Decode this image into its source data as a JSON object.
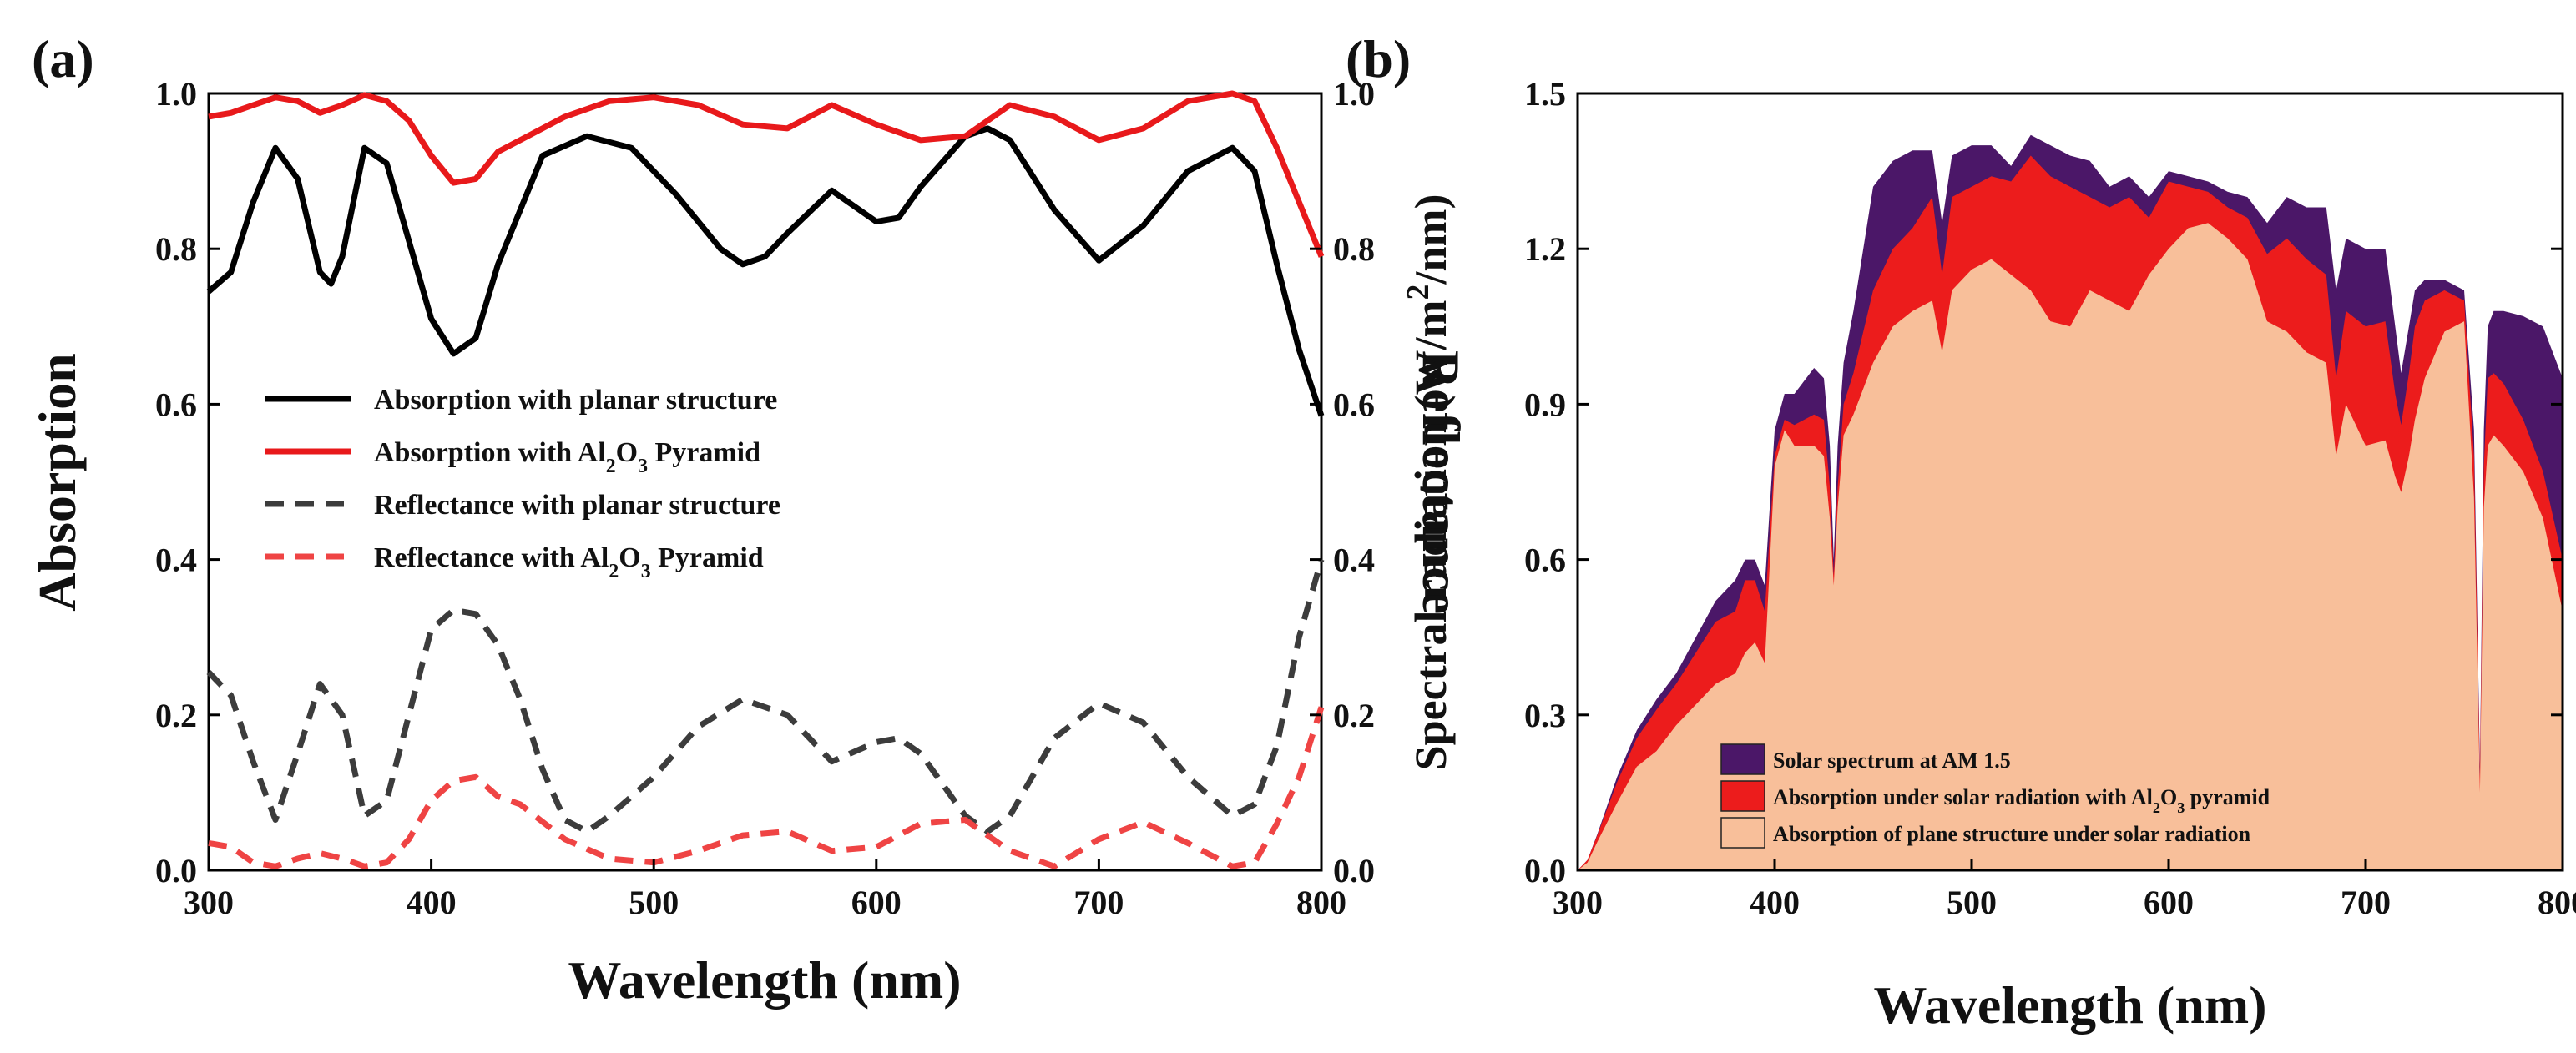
{
  "panel_labels": {
    "a": "(a)",
    "b": "(b)"
  },
  "chart_data": [
    {
      "id": "a",
      "type": "line",
      "title": "",
      "xlabel": "Wavelength (nm)",
      "ylabel": "Absorption",
      "ylabel_right": "Reflectance",
      "xlim": [
        300,
        800
      ],
      "ylim": [
        0,
        1
      ],
      "xticks": [
        "300",
        "400",
        "500",
        "600",
        "700",
        "800"
      ],
      "yticks": [
        "0.0",
        "0.2",
        "0.4",
        "0.6",
        "0.8",
        "1.0"
      ],
      "legend_location": "center",
      "series": [
        {
          "name": "Absorption with planar structure",
          "legend_parts": [
            "Absorption with planar structure"
          ],
          "color": "#000000",
          "style": "solid",
          "x": [
            300,
            310,
            320,
            330,
            340,
            350,
            355,
            360,
            370,
            380,
            390,
            400,
            410,
            420,
            430,
            450,
            470,
            490,
            510,
            530,
            540,
            550,
            560,
            580,
            600,
            610,
            620,
            640,
            650,
            660,
            680,
            700,
            720,
            740,
            760,
            770,
            780,
            790,
            800
          ],
          "y": [
            0.745,
            0.77,
            0.86,
            0.93,
            0.89,
            0.77,
            0.755,
            0.79,
            0.93,
            0.91,
            0.81,
            0.71,
            0.665,
            0.685,
            0.78,
            0.92,
            0.945,
            0.93,
            0.87,
            0.8,
            0.78,
            0.79,
            0.82,
            0.875,
            0.835,
            0.84,
            0.88,
            0.945,
            0.955,
            0.94,
            0.85,
            0.785,
            0.83,
            0.9,
            0.93,
            0.9,
            0.78,
            0.67,
            0.585
          ]
        },
        {
          "name": "Absorption with Al2O3 Pyramid",
          "legend_parts": [
            "Absorption with Al",
            "2",
            "O",
            "3",
            " Pyramid"
          ],
          "color": "#e8191b",
          "style": "solid",
          "x": [
            300,
            310,
            320,
            330,
            340,
            350,
            360,
            370,
            380,
            390,
            400,
            410,
            420,
            430,
            440,
            460,
            480,
            500,
            520,
            540,
            560,
            580,
            600,
            620,
            640,
            660,
            680,
            700,
            720,
            740,
            760,
            770,
            780,
            790,
            800
          ],
          "y": [
            0.97,
            0.975,
            0.985,
            0.995,
            0.99,
            0.975,
            0.985,
            0.998,
            0.99,
            0.965,
            0.92,
            0.885,
            0.89,
            0.925,
            0.94,
            0.97,
            0.99,
            0.995,
            0.985,
            0.96,
            0.955,
            0.985,
            0.96,
            0.94,
            0.945,
            0.985,
            0.97,
            0.94,
            0.955,
            0.99,
            1.0,
            0.99,
            0.93,
            0.86,
            0.79
          ]
        },
        {
          "name": "Reflectance with planar structure",
          "legend_parts": [
            "Reflectance with planar structure"
          ],
          "color": "#3c3c3c",
          "style": "dashed",
          "x": [
            300,
            310,
            320,
            330,
            340,
            350,
            360,
            370,
            380,
            390,
            400,
            410,
            420,
            430,
            440,
            450,
            460,
            470,
            480,
            500,
            520,
            540,
            560,
            580,
            600,
            610,
            620,
            640,
            650,
            660,
            680,
            700,
            720,
            740,
            760,
            770,
            780,
            790,
            800
          ],
          "y": [
            0.255,
            0.225,
            0.14,
            0.065,
            0.15,
            0.24,
            0.2,
            0.07,
            0.09,
            0.2,
            0.31,
            0.335,
            0.33,
            0.29,
            0.22,
            0.13,
            0.065,
            0.05,
            0.07,
            0.12,
            0.185,
            0.22,
            0.2,
            0.14,
            0.165,
            0.17,
            0.15,
            0.07,
            0.05,
            0.07,
            0.17,
            0.215,
            0.19,
            0.12,
            0.07,
            0.085,
            0.16,
            0.3,
            0.4
          ]
        },
        {
          "name": "Reflectance with Al2O3 Pyramid",
          "legend_parts": [
            "Reflectance with Al",
            "2",
            "O",
            "3",
            " Pyramid"
          ],
          "color": "#ef4444",
          "style": "dashed",
          "x": [
            300,
            310,
            320,
            330,
            340,
            350,
            360,
            370,
            380,
            390,
            400,
            410,
            420,
            430,
            440,
            460,
            480,
            500,
            520,
            540,
            560,
            580,
            600,
            620,
            640,
            660,
            680,
            700,
            720,
            740,
            760,
            770,
            780,
            790,
            800
          ],
          "y": [
            0.035,
            0.03,
            0.01,
            0.005,
            0.015,
            0.022,
            0.015,
            0.005,
            0.01,
            0.04,
            0.09,
            0.115,
            0.12,
            0.095,
            0.085,
            0.04,
            0.015,
            0.01,
            0.025,
            0.045,
            0.05,
            0.025,
            0.03,
            0.06,
            0.065,
            0.025,
            0.005,
            0.04,
            0.062,
            0.035,
            0.005,
            0.01,
            0.06,
            0.12,
            0.21
          ]
        }
      ]
    },
    {
      "id": "b",
      "type": "area",
      "title": "",
      "xlabel": "Wavelength (nm)",
      "ylabel": "Spectral radiation (W/m2/nm)",
      "ylabel_parts": [
        "Spectral radiation (W/m",
        "2",
        "/nm)"
      ],
      "xlim": [
        300,
        800
      ],
      "ylim": [
        0,
        1.5
      ],
      "xticks": [
        "300",
        "400",
        "500",
        "600",
        "700",
        "800"
      ],
      "yticks": [
        "0.0",
        "0.3",
        "0.6",
        "0.9",
        "1.2",
        "1.5"
      ],
      "legend_location": "bottom-left",
      "x": [
        300,
        305,
        310,
        320,
        330,
        340,
        350,
        360,
        370,
        380,
        385,
        390,
        395,
        400,
        405,
        410,
        420,
        425,
        428,
        430,
        432,
        435,
        440,
        450,
        460,
        470,
        480,
        485,
        490,
        500,
        510,
        520,
        530,
        540,
        550,
        560,
        570,
        580,
        590,
        600,
        610,
        620,
        630,
        640,
        650,
        660,
        670,
        680,
        685,
        690,
        700,
        710,
        715,
        718,
        722,
        725,
        730,
        740,
        750,
        755,
        758,
        760,
        762,
        765,
        770,
        780,
        790,
        800
      ],
      "series": [
        {
          "name": "Solar spectrum at AM 1.5",
          "legend_parts": [
            "Solar spectrum at AM 1.5"
          ],
          "color": "#4b1768",
          "values": [
            0.0,
            0.02,
            0.07,
            0.18,
            0.27,
            0.33,
            0.38,
            0.45,
            0.52,
            0.56,
            0.6,
            0.6,
            0.55,
            0.85,
            0.92,
            0.92,
            0.97,
            0.95,
            0.82,
            0.6,
            0.82,
            0.98,
            1.08,
            1.32,
            1.37,
            1.39,
            1.39,
            1.25,
            1.38,
            1.4,
            1.4,
            1.36,
            1.42,
            1.4,
            1.38,
            1.37,
            1.32,
            1.34,
            1.3,
            1.35,
            1.34,
            1.33,
            1.31,
            1.3,
            1.25,
            1.3,
            1.28,
            1.28,
            1.12,
            1.22,
            1.2,
            1.2,
            1.05,
            0.96,
            1.05,
            1.12,
            1.14,
            1.14,
            1.12,
            0.85,
            0.2,
            0.85,
            1.05,
            1.08,
            1.08,
            1.07,
            1.05,
            0.95
          ]
        },
        {
          "name": "Absorption under solar radiation with Al2O3 pyramid",
          "legend_parts": [
            "Absorption under solar radiation with Al",
            "2",
            "O",
            "3",
            " pyramid"
          ],
          "color": "#ec1c1c",
          "values": [
            0.0,
            0.02,
            0.068,
            0.17,
            0.255,
            0.31,
            0.36,
            0.42,
            0.48,
            0.5,
            0.56,
            0.56,
            0.5,
            0.8,
            0.87,
            0.86,
            0.88,
            0.87,
            0.74,
            0.57,
            0.74,
            0.9,
            0.96,
            1.12,
            1.2,
            1.24,
            1.3,
            1.15,
            1.3,
            1.32,
            1.34,
            1.33,
            1.38,
            1.34,
            1.32,
            1.3,
            1.28,
            1.3,
            1.26,
            1.33,
            1.32,
            1.31,
            1.28,
            1.26,
            1.19,
            1.22,
            1.18,
            1.15,
            0.95,
            1.08,
            1.05,
            1.06,
            0.92,
            0.86,
            0.96,
            1.05,
            1.1,
            1.12,
            1.1,
            0.8,
            0.18,
            0.78,
            0.95,
            0.96,
            0.94,
            0.87,
            0.77,
            0.6
          ]
        },
        {
          "name": "Absorption of plane structure under solar radiation",
          "legend_parts": [
            "Absorption of plane structure under solar radiation"
          ],
          "color": "#f8bf9a",
          "values": [
            0.0,
            0.015,
            0.055,
            0.13,
            0.2,
            0.23,
            0.28,
            0.32,
            0.36,
            0.38,
            0.42,
            0.44,
            0.4,
            0.78,
            0.85,
            0.82,
            0.82,
            0.8,
            0.68,
            0.55,
            0.7,
            0.84,
            0.88,
            0.98,
            1.05,
            1.08,
            1.1,
            1.0,
            1.12,
            1.16,
            1.18,
            1.15,
            1.12,
            1.06,
            1.05,
            1.12,
            1.1,
            1.08,
            1.15,
            1.2,
            1.24,
            1.25,
            1.22,
            1.18,
            1.06,
            1.04,
            1.0,
            0.98,
            0.8,
            0.9,
            0.82,
            0.83,
            0.76,
            0.73,
            0.8,
            0.87,
            0.95,
            1.04,
            1.06,
            0.72,
            0.15,
            0.7,
            0.82,
            0.84,
            0.82,
            0.77,
            0.68,
            0.5
          ]
        }
      ]
    }
  ]
}
